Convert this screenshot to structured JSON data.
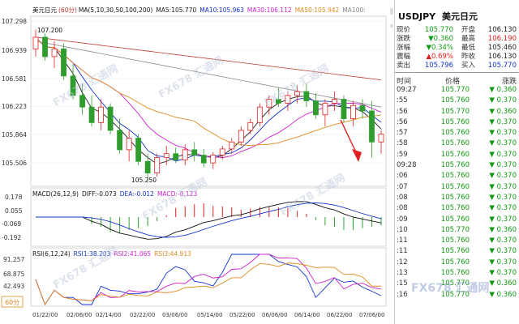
{
  "header": {
    "symbol": "美元日元",
    "period": "(60分)",
    "ma_params": "MA(5,10,30,50,100,200)",
    "ma_values": [
      {
        "label": "MA5:",
        "value": "105.770",
        "color": "#222222"
      },
      {
        "label": "MA10:",
        "value": "105.963",
        "color": "#1133cc"
      },
      {
        "label": "MA30:",
        "value": "106.112",
        "color": "#cc22cc"
      },
      {
        "label": "MA50:",
        "value": "105.942",
        "color": "#e08a1e"
      },
      {
        "label": "MA100:",
        "value": "",
        "color": "#888888"
      }
    ]
  },
  "price_axis": [
    "107.298",
    "106.939",
    "106.581",
    "106.223",
    "105.864",
    "105.506"
  ],
  "annotations": {
    "high": "107.200",
    "low": "105.250"
  },
  "macd": {
    "label": "MACD(26,12,9)",
    "diff": "DIFF:-0.073",
    "dea": "DEA:-0.012",
    "macd": "MACD:-0.123",
    "axis": [
      "0.178",
      "0.055",
      "-0.069",
      "-0.192"
    ]
  },
  "rsi": {
    "label": "RSI(6,12,24)",
    "rsi1": "RSI1:38.203",
    "rsi2": "RSI2:41.065",
    "rsi3": "RSI3:44.913",
    "axis": [
      "91.257",
      "68.875",
      "42.493"
    ]
  },
  "period_button": "60分",
  "date_axis": [
    "01/22/00",
    "02/06/00",
    "02/14/00",
    "02/22/00",
    "03/06/00",
    "05/14/00",
    "05/22/00",
    "06/06/00",
    "06/14/00",
    "06/22/00",
    "07/06/00"
  ],
  "watermark": "FX678 汇通网",
  "quote": {
    "code": "USDJPY",
    "name": "美元日元",
    "rows": [
      {
        "l1": "现价",
        "v1": "105.770",
        "c1": "green",
        "l2": "开盘",
        "v2": "106.130",
        "c2": "normal"
      },
      {
        "l1": "涨跌",
        "v1": "▼0.360",
        "c1": "green",
        "l2": "最高",
        "v2": "106.190",
        "c2": "red"
      },
      {
        "l1": "涨幅",
        "v1": "▼0.34%",
        "c1": "green",
        "l2": "最低",
        "v2": "105.460",
        "c2": "normal"
      },
      {
        "l1": "震幅",
        "v1": "▲0.69%",
        "c1": "red",
        "l2": "昨收",
        "v2": "106.130",
        "c2": "normal"
      },
      {
        "l1": "卖出",
        "v1": "105.796",
        "c1": "blue",
        "l2": "买入",
        "v2": "105.770",
        "c2": "blue"
      }
    ],
    "table_headers": {
      "time": "时间",
      "price": "价格",
      "change": "涨跌"
    },
    "trades": [
      {
        "time": "09:27",
        "price": "105.770",
        "change": "0.360"
      },
      {
        "time": ":55",
        "price": "105.760",
        "change": "0.370"
      },
      {
        "time": ":56",
        "price": "105.770",
        "change": "0.360"
      },
      {
        "time": ":56",
        "price": "105.760",
        "change": "0.370"
      },
      {
        "time": ":57",
        "price": "105.760",
        "change": "0.370"
      },
      {
        "time": ":58",
        "price": "105.760",
        "change": "0.370"
      },
      {
        "time": ":59",
        "price": "105.760",
        "change": "0.370"
      },
      {
        "time": "09:28",
        "price": "105.760",
        "change": "0.370"
      },
      {
        "time": ":06",
        "price": "105.760",
        "change": "0.370"
      },
      {
        "time": ":07",
        "price": "105.760",
        "change": "0.370"
      },
      {
        "time": ":08",
        "price": "105.760",
        "change": "0.370"
      },
      {
        "time": ":08",
        "price": "105.760",
        "change": "0.370"
      },
      {
        "time": ":09",
        "price": "105.760",
        "change": "0.370"
      },
      {
        "time": ":10",
        "price": "105.770",
        "change": "0.360"
      },
      {
        "time": ":11",
        "price": "105.760",
        "change": "0.370"
      },
      {
        "time": ":11",
        "price": "105.760",
        "change": "0.370"
      },
      {
        "time": ":12",
        "price": "105.760",
        "change": "0.370"
      },
      {
        "time": ":13",
        "price": "105.760",
        "change": "0.370"
      },
      {
        "time": ":15",
        "price": "105.770",
        "change": "0.360"
      },
      {
        "time": ":16",
        "price": "105.770",
        "change": "0.360"
      }
    ]
  },
  "chart_data": {
    "type": "candlestick",
    "candles": [
      {
        "o": 106.95,
        "h": 107.2,
        "l": 106.85,
        "c": 107.1
      },
      {
        "o": 107.1,
        "h": 107.15,
        "l": 106.8,
        "c": 106.85
      },
      {
        "o": 106.85,
        "h": 107.05,
        "l": 106.7,
        "c": 106.95
      },
      {
        "o": 106.95,
        "h": 107.02,
        "l": 106.55,
        "c": 106.6
      },
      {
        "o": 106.6,
        "h": 106.75,
        "l": 106.3,
        "c": 106.35
      },
      {
        "o": 106.35,
        "h": 106.5,
        "l": 106.1,
        "c": 106.2
      },
      {
        "o": 106.2,
        "h": 106.35,
        "l": 105.95,
        "c": 106.0
      },
      {
        "o": 106.0,
        "h": 106.3,
        "l": 105.9,
        "c": 106.2
      },
      {
        "o": 106.2,
        "h": 106.25,
        "l": 105.85,
        "c": 105.9
      },
      {
        "o": 105.9,
        "h": 106.05,
        "l": 105.6,
        "c": 105.65
      },
      {
        "o": 105.65,
        "h": 105.9,
        "l": 105.5,
        "c": 105.8
      },
      {
        "o": 105.8,
        "h": 105.85,
        "l": 105.45,
        "c": 105.5
      },
      {
        "o": 105.5,
        "h": 105.6,
        "l": 105.25,
        "c": 105.35
      },
      {
        "o": 105.35,
        "h": 105.6,
        "l": 105.3,
        "c": 105.55
      },
      {
        "o": 105.55,
        "h": 105.7,
        "l": 105.45,
        "c": 105.6
      },
      {
        "o": 105.6,
        "h": 105.68,
        "l": 105.48,
        "c": 105.52
      },
      {
        "o": 105.52,
        "h": 105.72,
        "l": 105.45,
        "c": 105.65
      },
      {
        "o": 105.65,
        "h": 105.75,
        "l": 105.5,
        "c": 105.58
      },
      {
        "o": 105.58,
        "h": 105.66,
        "l": 105.42,
        "c": 105.48
      },
      {
        "o": 105.48,
        "h": 105.62,
        "l": 105.4,
        "c": 105.58
      },
      {
        "o": 105.58,
        "h": 105.7,
        "l": 105.52,
        "c": 105.66
      },
      {
        "o": 105.66,
        "h": 105.8,
        "l": 105.6,
        "c": 105.75
      },
      {
        "o": 105.75,
        "h": 105.95,
        "l": 105.7,
        "c": 105.9
      },
      {
        "o": 105.9,
        "h": 106.05,
        "l": 105.85,
        "c": 106.0
      },
      {
        "o": 106.0,
        "h": 106.25,
        "l": 105.95,
        "c": 106.2
      },
      {
        "o": 106.2,
        "h": 106.35,
        "l": 106.1,
        "c": 106.3
      },
      {
        "o": 106.3,
        "h": 106.45,
        "l": 106.2,
        "c": 106.25
      },
      {
        "o": 106.25,
        "h": 106.4,
        "l": 106.15,
        "c": 106.35
      },
      {
        "o": 106.35,
        "h": 106.48,
        "l": 106.25,
        "c": 106.4
      },
      {
        "o": 106.4,
        "h": 106.5,
        "l": 106.2,
        "c": 106.28
      },
      {
        "o": 106.28,
        "h": 106.38,
        "l": 106.05,
        "c": 106.1
      },
      {
        "o": 106.1,
        "h": 106.3,
        "l": 105.95,
        "c": 106.25
      },
      {
        "o": 106.25,
        "h": 106.4,
        "l": 106.15,
        "c": 106.3
      },
      {
        "o": 106.3,
        "h": 106.35,
        "l": 106.0,
        "c": 106.05
      },
      {
        "o": 106.05,
        "h": 106.28,
        "l": 105.95,
        "c": 106.22
      },
      {
        "o": 106.22,
        "h": 106.3,
        "l": 106.05,
        "c": 106.15
      },
      {
        "o": 106.15,
        "h": 106.28,
        "l": 105.55,
        "c": 105.75
      },
      {
        "o": 105.75,
        "h": 105.9,
        "l": 105.6,
        "c": 105.85
      }
    ],
    "ylim": [
      105.2,
      107.35
    ]
  }
}
